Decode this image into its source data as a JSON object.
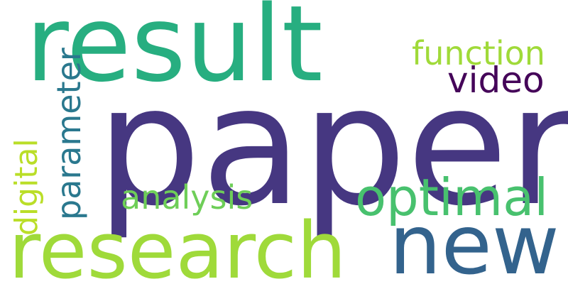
{
  "words": [
    {
      "key": "paper",
      "text": "paper",
      "color": "#463781"
    },
    {
      "key": "result",
      "text": "result",
      "color": "#27ae80"
    },
    {
      "key": "research",
      "text": "research",
      "color": "#9fda3a"
    },
    {
      "key": "new",
      "text": "new",
      "color": "#33638d"
    },
    {
      "key": "optimal",
      "text": "optimal",
      "color": "#48c16e"
    },
    {
      "key": "function",
      "text": "function",
      "color": "#a0da39"
    },
    {
      "key": "video",
      "text": "video",
      "color": "#450559"
    },
    {
      "key": "analysis",
      "text": "analysis",
      "color": "#6ece58"
    },
    {
      "key": "parameter",
      "text": "parameter",
      "color": "#2a788e"
    },
    {
      "key": "digital",
      "text": "digital",
      "color": "#bade28"
    }
  ]
}
